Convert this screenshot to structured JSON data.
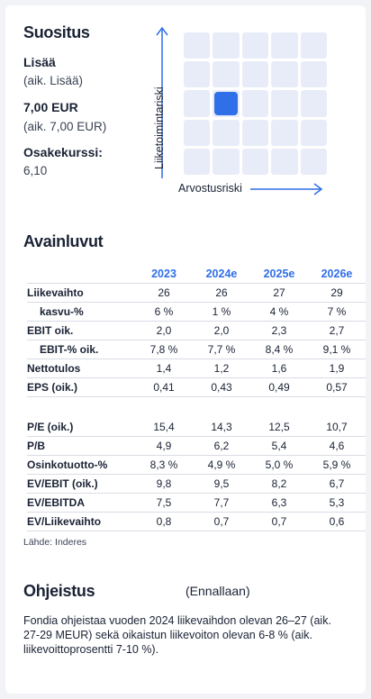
{
  "recommendation": {
    "title": "Suositus",
    "rating": "Lisää",
    "rating_prev": "(aik. Lisää)",
    "target": "7,00 EUR",
    "target_prev": "(aik. 7,00 EUR)",
    "price_label": "Osakekurssi:",
    "price": "6,10"
  },
  "risk_chart": {
    "y_label": "Liiketoimintariski",
    "x_label": "Arvostusriski",
    "grid_size": 5,
    "business_risk_level": 3,
    "valuation_risk_level": 2,
    "grid_color": "#e8ecf8",
    "marker_color": "#2f6fe8",
    "arrow_color": "#2f6fe8"
  },
  "key_figures": {
    "title": "Avainluvut",
    "years": [
      "2023",
      "2024e",
      "2025e",
      "2026e"
    ],
    "rows_top": [
      {
        "label": "Liikevaihto",
        "indent": false,
        "values": [
          "26",
          "26",
          "27",
          "29"
        ]
      },
      {
        "label": "kasvu-%",
        "indent": true,
        "values": [
          "6 %",
          "1 %",
          "4 %",
          "7 %"
        ]
      },
      {
        "label": "EBIT oik.",
        "indent": false,
        "values": [
          "2,0",
          "2,0",
          "2,3",
          "2,7"
        ]
      },
      {
        "label": "EBIT-% oik.",
        "indent": true,
        "values": [
          "7,8 %",
          "7,7 %",
          "8,4 %",
          "9,1 %"
        ]
      },
      {
        "label": "Nettotulos",
        "indent": false,
        "values": [
          "1,4",
          "1,2",
          "1,6",
          "1,9"
        ]
      },
      {
        "label": "EPS (oik.)",
        "indent": false,
        "values": [
          "0,41",
          "0,43",
          "0,49",
          "0,57"
        ]
      }
    ],
    "rows_bottom": [
      {
        "label": "P/E (oik.)",
        "indent": false,
        "values": [
          "15,4",
          "14,3",
          "12,5",
          "10,7"
        ]
      },
      {
        "label": "P/B",
        "indent": false,
        "values": [
          "4,9",
          "6,2",
          "5,4",
          "4,6"
        ]
      },
      {
        "label": "Osinkotuotto-%",
        "indent": false,
        "values": [
          "8,3 %",
          "4,9 %",
          "5,0 %",
          "5,9 %"
        ]
      },
      {
        "label": "EV/EBIT (oik.)",
        "indent": false,
        "values": [
          "9,8",
          "9,5",
          "8,2",
          "6,7"
        ]
      },
      {
        "label": "EV/EBITDA",
        "indent": false,
        "values": [
          "7,5",
          "7,7",
          "6,3",
          "5,3"
        ]
      },
      {
        "label": "EV/Liikevaihto",
        "indent": false,
        "values": [
          "0,8",
          "0,7",
          "0,7",
          "0,6"
        ]
      }
    ],
    "source": "Lähde: Inderes",
    "accent_color": "#2f6fe8"
  },
  "guidance": {
    "title": "Ohjeistus",
    "status": "(Ennallaan)",
    "text": "Fondia ohjeistaa vuoden 2024 liikevaihdon olevan 26–27 (aik. 27-29 MEUR) sekä oikaistun liikevoiton olevan 6-8 % (aik. liikevoittoprosentti 7-10 %)."
  }
}
